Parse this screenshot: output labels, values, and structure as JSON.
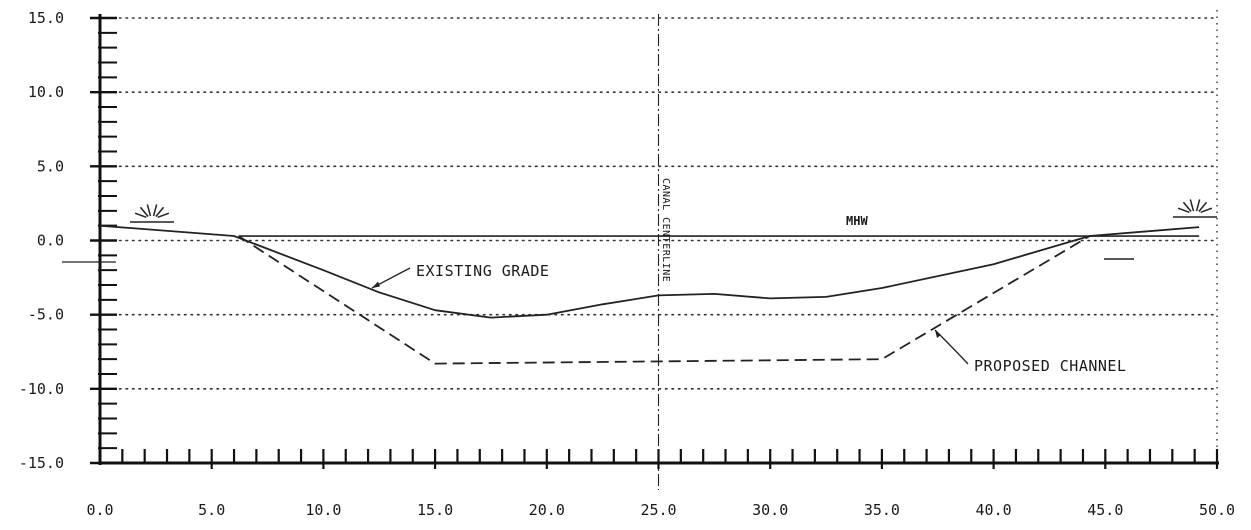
{
  "chart_data": {
    "type": "line",
    "x_ticks": [
      "0.0",
      "5.0",
      "10.0",
      "15.0",
      "20.0",
      "25.0",
      "30.0",
      "35.0",
      "40.0",
      "45.0",
      "50.0"
    ],
    "y_ticks": [
      "15.0",
      "10.0",
      "5.0",
      "0.0",
      "-5.0",
      "-10.0",
      "-15.0"
    ],
    "xlim": [
      0,
      50
    ],
    "ylim": [
      -15,
      15
    ],
    "grid": "dotted horizontal at labeled y ticks",
    "series": [
      {
        "name": "EXISTING GRADE",
        "style": "solid",
        "points": [
          [
            0.0,
            1.0
          ],
          [
            6.0,
            0.3
          ],
          [
            10.0,
            -2.0
          ],
          [
            12.5,
            -3.5
          ],
          [
            15.0,
            -4.7
          ],
          [
            17.5,
            -5.2
          ],
          [
            20.0,
            -5.0
          ],
          [
            22.5,
            -4.3
          ],
          [
            25.0,
            -3.7
          ],
          [
            27.5,
            -3.6
          ],
          [
            30.0,
            -3.9
          ],
          [
            32.5,
            -3.8
          ],
          [
            35.0,
            -3.2
          ],
          [
            40.0,
            -1.6
          ],
          [
            44.3,
            0.3
          ],
          [
            49.2,
            0.9
          ]
        ]
      },
      {
        "name": "PROPOSED CHANNEL",
        "style": "dashed",
        "points": [
          [
            6.2,
            0.3
          ],
          [
            15.0,
            -8.3
          ],
          [
            35.0,
            -8.0
          ],
          [
            44.3,
            0.3
          ]
        ]
      }
    ],
    "mhw_level": 0.3,
    "centerline_x": 25.0,
    "annotations": {
      "existing_grade": "EXISTING GRADE",
      "proposed_channel": "PROPOSED CHANNEL",
      "mhw": "MHW",
      "centerline": "CANAL CENTERLINE"
    }
  }
}
